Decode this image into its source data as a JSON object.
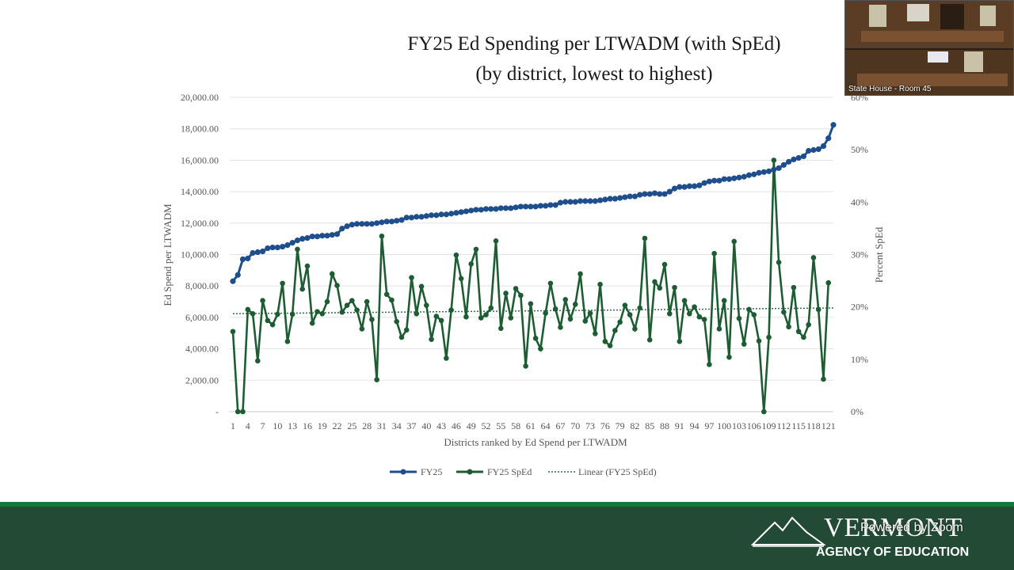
{
  "title_line1": "FY25 Ed Spending per LTWADM  (with SpEd)",
  "title_line2": "(by district, lowest to highest)",
  "video": {
    "caption": "State House - Room 45"
  },
  "footer": {
    "brand_name": "VERMONT",
    "brand_sub": "AGENCY OF EDUCATION",
    "zoom_overlay": "Powered by Zoom"
  },
  "colors": {
    "fy25": "#1f4e8c",
    "sped": "#1e5c34",
    "trend": "#2e6b4a",
    "footer_bg": "#234a35",
    "footer_stripe": "#0f7a3a"
  },
  "chart_data": {
    "type": "line",
    "xlabel": "Districts ranked by Ed Spend per LTWADM",
    "ylabel": "Ed Spend per LTWADM",
    "y2label": "Percent SpEd",
    "ylim": [
      0,
      20000
    ],
    "y2lim": [
      0,
      60
    ],
    "yticks": [
      "-",
      "2,000.00",
      "4,000.00",
      "6,000.00",
      "8,000.00",
      "10,000.00",
      "12,000.00",
      "14,000.00",
      "16,000.00",
      "18,000.00",
      "20,000.00"
    ],
    "y2ticks": [
      "0%",
      "10%",
      "20%",
      "30%",
      "40%",
      "50%",
      "60%"
    ],
    "xticks": [
      "1",
      "4",
      "7",
      "10",
      "13",
      "16",
      "19",
      "22",
      "25",
      "28",
      "31",
      "34",
      "37",
      "40",
      "43",
      "46",
      "49",
      "52",
      "55",
      "58",
      "61",
      "64",
      "67",
      "70",
      "73",
      "76",
      "79",
      "82",
      "85",
      "88",
      "91",
      "94",
      "97",
      "100",
      "103",
      "106",
      "109",
      "112",
      "115",
      "118",
      "121"
    ],
    "legend": [
      "FY25",
      "FY25 SpEd",
      "Linear (FY25 SpEd)"
    ],
    "series": [
      {
        "name": "FY25",
        "axis": "left",
        "values": [
          8300,
          8700,
          9700,
          9750,
          10100,
          10150,
          10200,
          10400,
          10450,
          10450,
          10500,
          10600,
          10750,
          10900,
          11000,
          11050,
          11150,
          11150,
          11200,
          11200,
          11250,
          11300,
          11650,
          11800,
          11900,
          11950,
          11950,
          11950,
          11950,
          12000,
          12050,
          12100,
          12100,
          12150,
          12200,
          12350,
          12350,
          12400,
          12400,
          12450,
          12500,
          12500,
          12550,
          12550,
          12600,
          12650,
          12700,
          12750,
          12800,
          12850,
          12850,
          12900,
          12900,
          12900,
          12950,
          12950,
          12950,
          13000,
          13050,
          13050,
          13050,
          13050,
          13100,
          13100,
          13150,
          13150,
          13300,
          13350,
          13350,
          13350,
          13400,
          13400,
          13400,
          13400,
          13450,
          13500,
          13550,
          13550,
          13600,
          13650,
          13700,
          13700,
          13800,
          13850,
          13850,
          13900,
          13850,
          13850,
          14000,
          14200,
          14300,
          14300,
          14350,
          14350,
          14400,
          14550,
          14650,
          14700,
          14700,
          14800,
          14800,
          14850,
          14900,
          14950,
          15050,
          15100,
          15200,
          15250,
          15300,
          15400,
          15500,
          15700,
          15900,
          16050,
          16150,
          16250,
          16600,
          16650,
          16700,
          16900,
          17400,
          18250
        ]
      },
      {
        "name": "FY25 SpEd",
        "axis": "right",
        "values": [
          15.3,
          0,
          0,
          19.5,
          18.7,
          9.7,
          21.2,
          17.4,
          16.6,
          18.6,
          24.5,
          13.4,
          18.6,
          31,
          23.4,
          27.8,
          16.9,
          19.1,
          18.7,
          21,
          26.3,
          24.1,
          19,
          20.3,
          21.2,
          19.4,
          15.8,
          21,
          17.6,
          6.1,
          33.5,
          22.4,
          21.3,
          17.2,
          14.2,
          15.6,
          25.6,
          18.7,
          23.9,
          20.3,
          13.8,
          18.2,
          17.4,
          10.2,
          19.4,
          29.9,
          25.4,
          18.1,
          28.2,
          31,
          17.9,
          18.5,
          19.8,
          32.6,
          15.9,
          22.6,
          17.9,
          23.5,
          22.2,
          8.7,
          20.6,
          14,
          12,
          18.8,
          24.5,
          19.6,
          16.1,
          21.4,
          17.7,
          20.5,
          26.3,
          17.3,
          18.8,
          14.9,
          24.3,
          13.4,
          12.6,
          15.5,
          17.1,
          20.3,
          18.5,
          15.8,
          19.8,
          33.1,
          13.7,
          24.8,
          23.6,
          28.1,
          18.7,
          23.7,
          13.4,
          21.2,
          18.7,
          20.0,
          18.1,
          17.6,
          9.0,
          30.2,
          15.8,
          21.2,
          10.4,
          32.5,
          17.8,
          12.9,
          19.5,
          18.5,
          13.5,
          0,
          14.2,
          48,
          28.5,
          19,
          16.2,
          23.7,
          15.3,
          14.2,
          16.6,
          29.4,
          19.5,
          6.2,
          24.6
        ]
      }
    ],
    "trend": {
      "name": "Linear (FY25 SpEd)",
      "start": 18.7,
      "end": 19.8
    }
  }
}
